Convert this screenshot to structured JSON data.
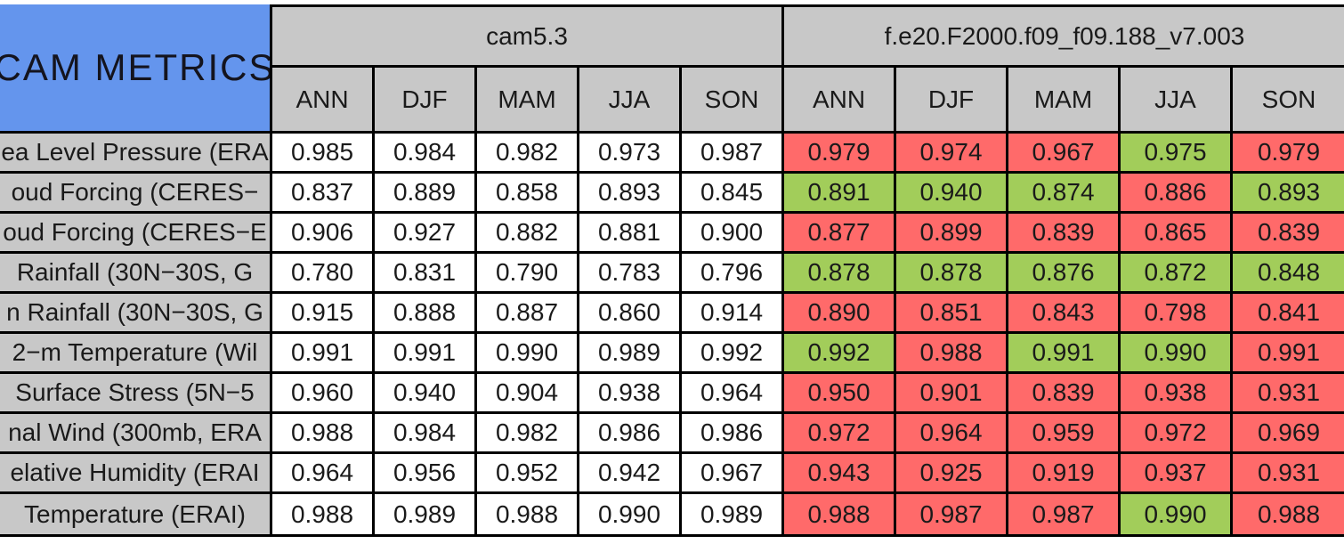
{
  "colors": {
    "title_bg": "#6495ED",
    "header_bg": "#C8C8C8",
    "better_bg": "#A2CD5A",
    "worse_bg": "#FF6A6A",
    "baseline_bg": "#FFFFFF",
    "border": "#000000"
  },
  "chart_data": {
    "type": "table",
    "title": "CAM METRICS",
    "column_groups": [
      "cam5.3",
      "f.e20.F2000.f09_f09.188_v7.003"
    ],
    "season_columns": [
      "ANN",
      "DJF",
      "MAM",
      "JJA",
      "SON"
    ],
    "legend_note": "green = test case better than cam5.3 baseline, red = worse (colors only, no text legend visible)",
    "rows": [
      {
        "label": "ea Level Pressure (ERA",
        "cam53": [
          "0.985",
          "0.984",
          "0.982",
          "0.973",
          "0.987"
        ],
        "test": [
          {
            "value": "0.979",
            "status": "worse"
          },
          {
            "value": "0.974",
            "status": "worse"
          },
          {
            "value": "0.967",
            "status": "worse"
          },
          {
            "value": "0.975",
            "status": "better"
          },
          {
            "value": "0.979",
            "status": "worse"
          }
        ]
      },
      {
        "label": "oud Forcing (CERES−",
        "cam53": [
          "0.837",
          "0.889",
          "0.858",
          "0.893",
          "0.845"
        ],
        "test": [
          {
            "value": "0.891",
            "status": "better"
          },
          {
            "value": "0.940",
            "status": "better"
          },
          {
            "value": "0.874",
            "status": "better"
          },
          {
            "value": "0.886",
            "status": "worse"
          },
          {
            "value": "0.893",
            "status": "better"
          }
        ]
      },
      {
        "label": "oud Forcing (CERES−E",
        "cam53": [
          "0.906",
          "0.927",
          "0.882",
          "0.881",
          "0.900"
        ],
        "test": [
          {
            "value": "0.877",
            "status": "worse"
          },
          {
            "value": "0.899",
            "status": "worse"
          },
          {
            "value": "0.839",
            "status": "worse"
          },
          {
            "value": "0.865",
            "status": "worse"
          },
          {
            "value": "0.839",
            "status": "worse"
          }
        ]
      },
      {
        "label": "Rainfall (30N−30S, G",
        "cam53": [
          "0.780",
          "0.831",
          "0.790",
          "0.783",
          "0.796"
        ],
        "test": [
          {
            "value": "0.878",
            "status": "better"
          },
          {
            "value": "0.878",
            "status": "better"
          },
          {
            "value": "0.876",
            "status": "better"
          },
          {
            "value": "0.872",
            "status": "better"
          },
          {
            "value": "0.848",
            "status": "better"
          }
        ]
      },
      {
        "label": "n Rainfall (30N−30S, G",
        "cam53": [
          "0.915",
          "0.888",
          "0.887",
          "0.860",
          "0.914"
        ],
        "test": [
          {
            "value": "0.890",
            "status": "worse"
          },
          {
            "value": "0.851",
            "status": "worse"
          },
          {
            "value": "0.843",
            "status": "worse"
          },
          {
            "value": "0.798",
            "status": "worse"
          },
          {
            "value": "0.841",
            "status": "worse"
          }
        ]
      },
      {
        "label": "2−m Temperature (Wil",
        "cam53": [
          "0.991",
          "0.991",
          "0.990",
          "0.989",
          "0.992"
        ],
        "test": [
          {
            "value": "0.992",
            "status": "better"
          },
          {
            "value": "0.988",
            "status": "worse"
          },
          {
            "value": "0.991",
            "status": "better"
          },
          {
            "value": "0.990",
            "status": "better"
          },
          {
            "value": "0.991",
            "status": "worse"
          }
        ]
      },
      {
        "label": "Surface Stress (5N−5",
        "cam53": [
          "0.960",
          "0.940",
          "0.904",
          "0.938",
          "0.964"
        ],
        "test": [
          {
            "value": "0.950",
            "status": "worse"
          },
          {
            "value": "0.901",
            "status": "worse"
          },
          {
            "value": "0.839",
            "status": "worse"
          },
          {
            "value": "0.938",
            "status": "worse"
          },
          {
            "value": "0.931",
            "status": "worse"
          }
        ]
      },
      {
        "label": "nal Wind (300mb, ERA",
        "cam53": [
          "0.988",
          "0.984",
          "0.982",
          "0.986",
          "0.986"
        ],
        "test": [
          {
            "value": "0.972",
            "status": "worse"
          },
          {
            "value": "0.964",
            "status": "worse"
          },
          {
            "value": "0.959",
            "status": "worse"
          },
          {
            "value": "0.972",
            "status": "worse"
          },
          {
            "value": "0.969",
            "status": "worse"
          }
        ]
      },
      {
        "label": "elative Humidity (ERAI",
        "cam53": [
          "0.964",
          "0.956",
          "0.952",
          "0.942",
          "0.967"
        ],
        "test": [
          {
            "value": "0.943",
            "status": "worse"
          },
          {
            "value": "0.925",
            "status": "worse"
          },
          {
            "value": "0.919",
            "status": "worse"
          },
          {
            "value": "0.937",
            "status": "worse"
          },
          {
            "value": "0.931",
            "status": "worse"
          }
        ]
      },
      {
        "label": "Temperature (ERAI)",
        "cam53": [
          "0.988",
          "0.989",
          "0.988",
          "0.990",
          "0.989"
        ],
        "test": [
          {
            "value": "0.988",
            "status": "worse"
          },
          {
            "value": "0.987",
            "status": "worse"
          },
          {
            "value": "0.987",
            "status": "worse"
          },
          {
            "value": "0.990",
            "status": "better"
          },
          {
            "value": "0.988",
            "status": "worse"
          }
        ]
      }
    ]
  }
}
